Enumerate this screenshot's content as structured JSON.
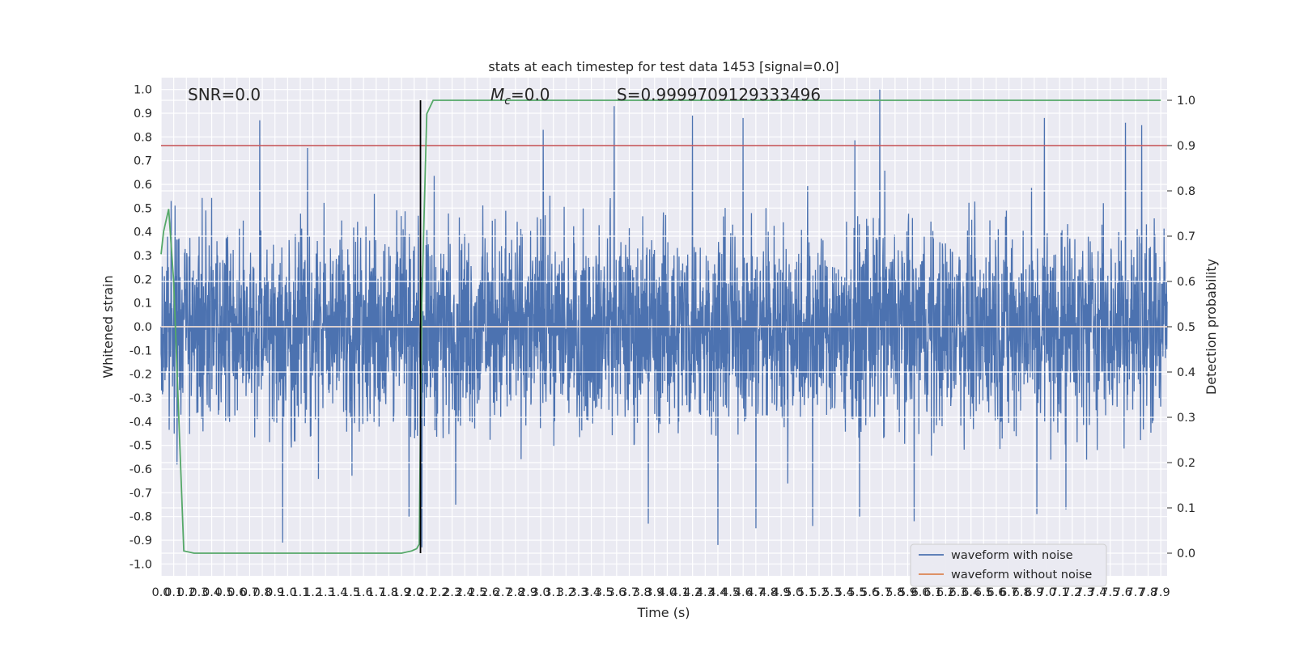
{
  "chart_data": {
    "type": "line",
    "title": "stats at each timestep for test data 1453 [signal=0.0]",
    "xlabel": "Time (s)",
    "ylabel": "Whitened strain",
    "y2label": "Detection probability",
    "xlim": [
      0.0,
      7.95
    ],
    "ylim": [
      -1.05,
      1.05
    ],
    "y2lim": [
      -0.05,
      1.05
    ],
    "x_ticks": [
      "0.0",
      "0.1",
      "0.2",
      "0.3",
      "0.4",
      "0.5",
      "0.6",
      "0.7",
      "0.8",
      "0.9",
      "1.0",
      "1.1",
      "1.2",
      "1.3",
      "1.4",
      "1.5",
      "1.6",
      "1.7",
      "1.8",
      "1.9",
      "2.0",
      "2.1",
      "2.2",
      "2.3",
      "2.4",
      "2.5",
      "2.6",
      "2.7",
      "2.8",
      "2.9",
      "3.0",
      "3.1",
      "3.2",
      "3.3",
      "3.4",
      "3.5",
      "3.6",
      "3.7",
      "3.8",
      "3.9",
      "4.0",
      "4.1",
      "4.2",
      "4.3",
      "4.4",
      "4.5",
      "4.6",
      "4.7",
      "4.8",
      "4.9",
      "5.0",
      "5.1",
      "5.2",
      "5.3",
      "5.4",
      "5.5",
      "5.6",
      "5.7",
      "5.8",
      "5.9",
      "6.0",
      "6.1",
      "6.2",
      "6.3",
      "6.4",
      "6.5",
      "6.6",
      "6.7",
      "6.8",
      "6.9",
      "7.0",
      "7.1",
      "7.2",
      "7.3",
      "7.4",
      "7.5",
      "7.6",
      "7.7",
      "7.8",
      "7.9"
    ],
    "y_ticks": [
      "1.0",
      "0.9",
      "0.8",
      "0.7",
      "0.6",
      "0.5",
      "0.4",
      "0.3",
      "0.2",
      "0.1",
      "0.0",
      "-0.1",
      "-0.2",
      "-0.3",
      "-0.4",
      "-0.5",
      "-0.6",
      "-0.7",
      "-0.8",
      "-0.9",
      "-1.0"
    ],
    "y2_ticks": [
      "1.0",
      "0.9",
      "0.8",
      "0.7",
      "0.6",
      "0.5",
      "0.4",
      "0.3",
      "0.2",
      "0.1",
      "0.0"
    ],
    "grid": true,
    "legend_position": "bottom-right",
    "legend": [
      "waveform with noise",
      "waveform without noise"
    ],
    "annotations": {
      "snr": "SNR=0.0",
      "mc": "=0.0",
      "mc_symbol": "M",
      "mc_sub": "c",
      "s": "S=0.9999709129333496"
    },
    "threshold_line": {
      "value": 0.9,
      "axis": "detection_probability",
      "color": "#c44e52"
    },
    "vertical_marker": {
      "x": 2.05,
      "color": "#000000"
    },
    "series": [
      {
        "name": "waveform with noise",
        "color": "#4c72b0",
        "kind": "noise",
        "t_range": [
          0.0,
          7.95
        ],
        "envelope_typical": [
          -0.45,
          0.45
        ],
        "peaks": [
          {
            "x": 0.08,
            "y": 0.53
          },
          {
            "x": 0.78,
            "y": 0.87
          },
          {
            "x": 3.02,
            "y": 0.83
          },
          {
            "x": 3.58,
            "y": 0.93
          },
          {
            "x": 4.2,
            "y": 0.89
          },
          {
            "x": 4.6,
            "y": 0.88
          },
          {
            "x": 5.68,
            "y": 1.0
          },
          {
            "x": 6.98,
            "y": 0.88
          },
          {
            "x": 7.62,
            "y": 0.86
          },
          {
            "x": 7.75,
            "y": 0.85
          }
        ],
        "troughs": [
          {
            "x": 0.96,
            "y": -0.91
          },
          {
            "x": 1.96,
            "y": -0.8
          },
          {
            "x": 2.06,
            "y": -0.93
          },
          {
            "x": 3.85,
            "y": -0.83
          },
          {
            "x": 4.4,
            "y": -0.92
          },
          {
            "x": 4.7,
            "y": -0.85
          },
          {
            "x": 5.15,
            "y": -0.84
          },
          {
            "x": 5.52,
            "y": -0.8
          },
          {
            "x": 5.95,
            "y": -0.82
          },
          {
            "x": 6.92,
            "y": -0.79
          },
          {
            "x": 7.15,
            "y": -0.77
          }
        ]
      },
      {
        "name": "waveform without noise",
        "color": "#dd8452",
        "x": [
          0.0,
          7.95
        ],
        "y": [
          0.0,
          0.0
        ]
      },
      {
        "name": "detection probability",
        "color": "#55a868",
        "axis": "right",
        "x": [
          0.0,
          0.02,
          0.06,
          0.1,
          0.14,
          0.18,
          0.26,
          1.9,
          1.98,
          2.02,
          2.04,
          2.06,
          2.1,
          2.15,
          2.2,
          7.9
        ],
        "y": [
          0.66,
          0.71,
          0.76,
          0.6,
          0.3,
          0.005,
          0.0,
          0.0,
          0.005,
          0.01,
          0.02,
          0.55,
          0.97,
          1.0,
          1.0,
          1.0
        ]
      }
    ]
  }
}
